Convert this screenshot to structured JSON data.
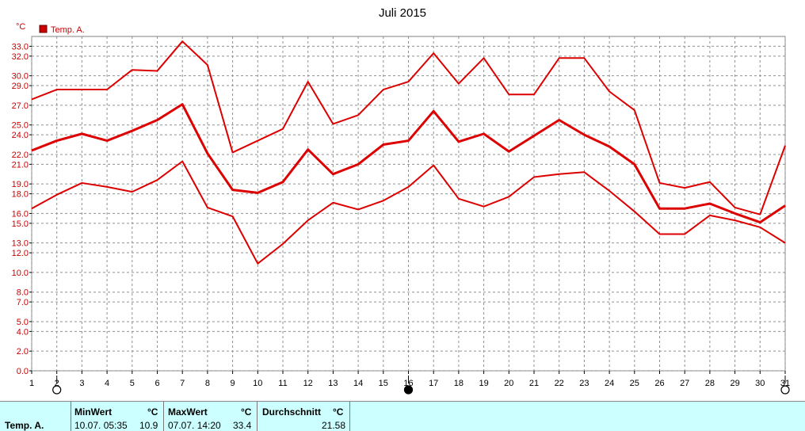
{
  "chart_data": {
    "type": "line",
    "title": "Juli 2015",
    "ylabel": "°C",
    "ylim": [
      0,
      34
    ],
    "yticks": [
      "0.0",
      "2.0",
      "4.0",
      "5.0",
      "7.0",
      "8.0",
      "10.0",
      "12.0",
      "13.0",
      "15.0",
      "16.0",
      "18.0",
      "19.0",
      "21.0",
      "22.0",
      "24.0",
      "25.0",
      "27.0",
      "29.0",
      "30.0",
      "32.0",
      "33.0"
    ],
    "x": [
      1,
      2,
      3,
      4,
      5,
      6,
      7,
      8,
      9,
      10,
      11,
      12,
      13,
      14,
      15,
      16,
      17,
      18,
      19,
      20,
      21,
      22,
      23,
      24,
      25,
      26,
      27,
      28,
      29,
      30,
      31
    ],
    "xlim": [
      1,
      31
    ],
    "legend": {
      "label": "Temp. A.",
      "position": "top-left",
      "color": "#cc0000"
    },
    "series": [
      {
        "role": "max",
        "values": [
          27.6,
          28.6,
          28.6,
          28.6,
          30.6,
          30.5,
          33.5,
          31.1,
          22.2,
          23.4,
          24.6,
          29.4,
          25.1,
          26.0,
          28.6,
          29.4,
          32.3,
          29.2,
          31.8,
          28.1,
          28.1,
          31.8,
          31.8,
          28.4,
          26.5,
          19.1,
          18.6,
          19.2,
          16.6,
          15.9,
          22.9
        ]
      },
      {
        "role": "avg",
        "values": [
          22.4,
          23.4,
          24.1,
          23.4,
          24.4,
          25.5,
          27.1,
          22.1,
          18.4,
          18.1,
          19.2,
          22.5,
          20.0,
          21.0,
          23.0,
          23.4,
          26.4,
          23.3,
          24.1,
          22.3,
          23.9,
          25.5,
          24.0,
          22.8,
          21.0,
          16.5,
          16.5,
          17.0,
          16.0,
          15.1,
          16.8
        ]
      },
      {
        "role": "min",
        "values": [
          16.5,
          17.9,
          19.1,
          18.7,
          18.2,
          19.4,
          21.3,
          16.6,
          15.7,
          10.9,
          12.9,
          15.3,
          17.1,
          16.4,
          17.3,
          18.7,
          20.9,
          17.5,
          16.7,
          17.7,
          19.7,
          20.0,
          20.2,
          18.3,
          16.2,
          13.9,
          13.9,
          15.8,
          15.3,
          14.6,
          13.0
        ]
      }
    ],
    "moon_phases": [
      {
        "day": 2,
        "phase": "open"
      },
      {
        "day": 16,
        "phase": "filled"
      },
      {
        "day": 31,
        "phase": "open"
      }
    ],
    "line_color": "#dd0000",
    "grid": true
  },
  "stats": {
    "series_label": "Temp. A.",
    "min": {
      "header": "MinWert",
      "unit": "°C",
      "when": "10.07.  05:35",
      "value": "10.9"
    },
    "max": {
      "header": "MaxWert",
      "unit": "°C",
      "when": "07.07.  14:20",
      "value": "33.4"
    },
    "avg": {
      "header": "Durchschnitt",
      "unit": "°C",
      "value": "21.58"
    }
  }
}
